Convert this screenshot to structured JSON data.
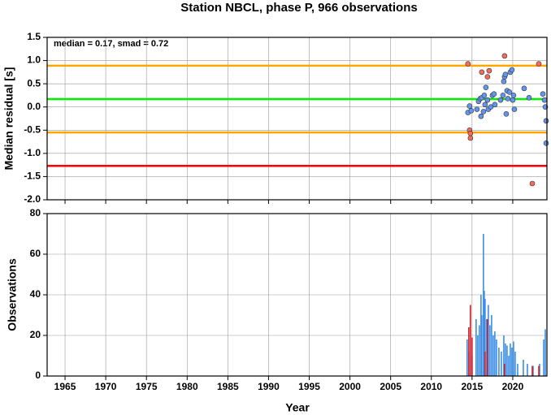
{
  "chart_data": [
    {
      "type": "scatter",
      "title": "Station NBCL, phase P, 966 observations",
      "y_label": "Median residual [s]",
      "annotation": "median = 0.17, smad = 0.72",
      "xlim": [
        1962.8,
        2024.2
      ],
      "xticks": [
        1965,
        1970,
        1975,
        1980,
        1985,
        1990,
        1995,
        2000,
        2005,
        2010,
        2015,
        2020
      ],
      "ylim": [
        -2.0,
        1.5
      ],
      "yticks": [
        {
          "value": -2.0,
          "label": "-2.0"
        },
        -1.5,
        {
          "value": -1.0,
          "label": "-1.0"
        },
        -0.5,
        {
          "value": 0.0,
          "label": "0.0"
        },
        0.5,
        {
          "value": 1.0,
          "label": "1.0"
        },
        1.5
      ],
      "grid": true,
      "hlines": [
        {
          "value": 0.89,
          "color": "#ffa500"
        },
        {
          "value": 0.17,
          "color": "#00ee00"
        },
        {
          "value": -0.55,
          "color": "#ffa500"
        },
        {
          "value": -1.27,
          "color": "#ff0000"
        }
      ],
      "series": [
        {
          "color": "#6495ed",
          "x": [
            2014.5,
            2014.7,
            2014.9,
            2015.6,
            2015.8,
            2016.0,
            2016.1,
            2016.2,
            2016.4,
            2016.5,
            2016.6,
            2016.7,
            2016.9,
            2017.0,
            2017.3,
            2017.5,
            2017.7,
            2017.8,
            2018.5,
            2018.8,
            2018.9,
            2019.0,
            2019.1,
            2019.2,
            2019.3,
            2019.4,
            2019.6,
            2019.7,
            2019.9,
            2020.0,
            2020.1,
            2020.2,
            2021.4,
            2022.0,
            2023.7,
            2023.9,
            2024.0,
            2024.1,
            2024.1
          ],
          "values": [
            -0.12,
            0.02,
            -0.08,
            -0.05,
            0.12,
            0.18,
            -0.2,
            0.2,
            -0.1,
            0.25,
            0.05,
            0.42,
            0.15,
            -0.05,
            0.0,
            0.25,
            0.28,
            0.05,
            0.15,
            0.25,
            0.55,
            0.65,
            0.7,
            -0.15,
            0.35,
            0.18,
            0.32,
            0.75,
            0.8,
            0.15,
            0.25,
            -0.05,
            0.4,
            0.2,
            0.28,
            0.15,
            0.0,
            -0.3,
            -0.78
          ]
        },
        {
          "color": "#f26b5b",
          "x": [
            2014.5,
            2014.7,
            2014.8,
            2014.8,
            2016.2,
            2016.9,
            2017.1,
            2019.0,
            2022.4,
            2023.2
          ],
          "values": [
            0.93,
            -0.5,
            -0.57,
            -0.67,
            0.75,
            0.65,
            0.78,
            1.1,
            -1.65,
            0.93
          ]
        }
      ]
    },
    {
      "type": "bar",
      "x_label": "Year",
      "y_label": "Observations",
      "xlim": [
        1962.8,
        2024.2
      ],
      "xticks": [
        1965,
        1970,
        1975,
        1980,
        1985,
        1990,
        1995,
        2000,
        2005,
        2010,
        2015,
        2020
      ],
      "ylim": [
        0,
        80
      ],
      "yticks": [
        0,
        20,
        40,
        60,
        80
      ],
      "grid": true,
      "series": [
        {
          "color": "#3a8ee6",
          "x": [
            2014.4,
            2014.6,
            2015.0,
            2015.5,
            2015.7,
            2015.9,
            2016.1,
            2016.2,
            2016.4,
            2016.5,
            2016.6,
            2016.8,
            2017.0,
            2017.2,
            2017.4,
            2017.6,
            2017.8,
            2018.0,
            2018.3,
            2018.6,
            2018.9,
            2019.1,
            2019.3,
            2019.5,
            2019.7,
            2019.9,
            2020.1,
            2020.3,
            2020.6,
            2021.3,
            2021.8,
            2022.5,
            2023.3,
            2023.8,
            2024.0
          ],
          "values": [
            18,
            12,
            10,
            28,
            20,
            25,
            40,
            30,
            70,
            42,
            38,
            28,
            35,
            25,
            30,
            20,
            22,
            18,
            14,
            12,
            20,
            16,
            15,
            10,
            16,
            14,
            17,
            12,
            6,
            8,
            6,
            5,
            6,
            18,
            23
          ]
        },
        {
          "color": "#d0202a",
          "x": [
            2014.6,
            2014.8,
            2015.0,
            2016.6,
            2016.9,
            2019.0,
            2022.4,
            2023.2
          ],
          "values": [
            24,
            35,
            19,
            12,
            28,
            6,
            5,
            5
          ]
        }
      ]
    }
  ]
}
